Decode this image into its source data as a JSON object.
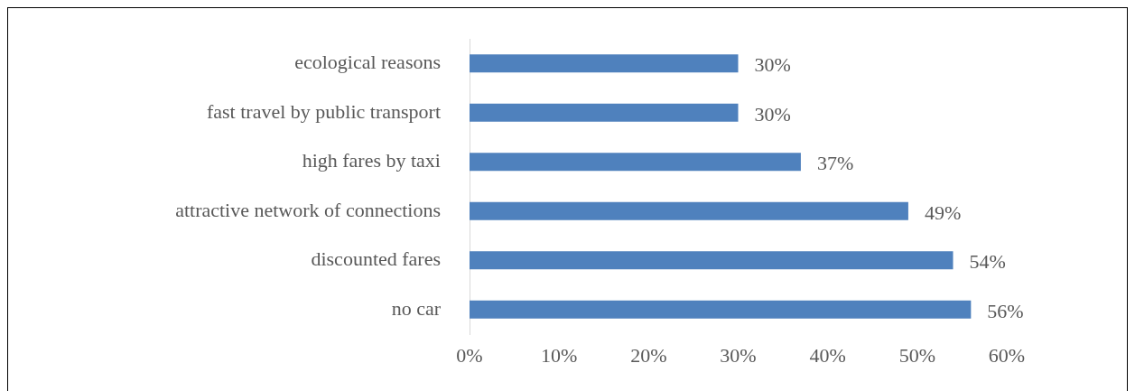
{
  "chart_data": {
    "type": "bar",
    "orientation": "horizontal",
    "categories": [
      "ecological reasons",
      "fast travel by public transport",
      "high fares by taxi",
      "attractive network of connections",
      "discounted fares",
      "no car"
    ],
    "values": [
      30,
      30,
      37,
      49,
      54,
      56
    ],
    "value_labels": [
      "30%",
      "30%",
      "37%",
      "49%",
      "54%",
      "56%"
    ],
    "color": "#4f81bd",
    "xlim": [
      0,
      60
    ],
    "xticks": [
      {
        "value": 0,
        "label": "0%"
      },
      {
        "value": 10,
        "label": "10%"
      },
      {
        "value": 20,
        "label": "20%"
      },
      {
        "value": 30,
        "label": "30%"
      },
      {
        "value": 40,
        "label": "40%"
      },
      {
        "value": 50,
        "label": "50%"
      },
      {
        "value": 60,
        "label": "60%"
      }
    ],
    "grid": false,
    "legend": false
  }
}
